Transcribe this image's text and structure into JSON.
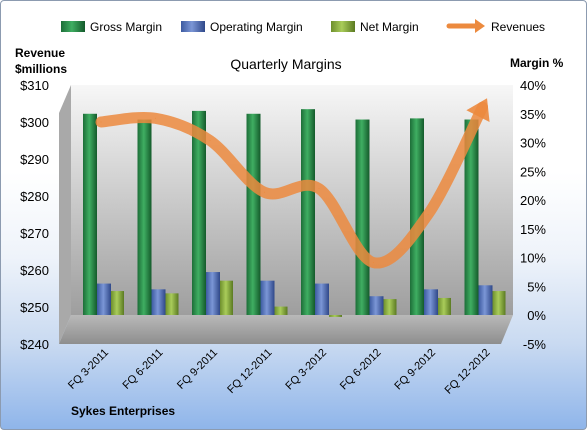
{
  "chart_data": {
    "type": "bar+line",
    "title": "Quarterly Margins",
    "company": "Sykes Enterprises",
    "left_axis_label_line1": "Revenue",
    "left_axis_label_line2": "$millions",
    "right_axis_label": "Margin %",
    "categories": [
      "FQ 3-2011",
      "FQ 6-2011",
      "FQ 9-2011",
      "FQ 12-2011",
      "FQ 3-2012",
      "FQ 6-2012",
      "FQ 9-2012",
      "FQ 12-2012"
    ],
    "left_axis": {
      "min": 240,
      "max": 310,
      "step": 10,
      "prefix": "$"
    },
    "right_axis": {
      "min": -5,
      "max": 40,
      "step": 5,
      "suffix": "%"
    },
    "series": [
      {
        "name": "Gross Margin",
        "axis": "right",
        "color": "#1f7a3e",
        "values": [
          35,
          34,
          35.5,
          35,
          35.8,
          34,
          34.2,
          34
        ]
      },
      {
        "name": "Operating Margin",
        "axis": "right",
        "color": "#4f6fb8",
        "values": [
          5.5,
          4.5,
          7.5,
          6,
          5.5,
          3.3,
          4.5,
          5.2
        ]
      },
      {
        "name": "Net Margin",
        "axis": "right",
        "color": "#8aad3c",
        "values": [
          4.2,
          3.8,
          6,
          1.5,
          -0.3,
          2.8,
          3,
          4.2
        ]
      },
      {
        "name": "Revenues",
        "axis": "left",
        "color": "#ec8a3e",
        "values": [
          300,
          301,
          295,
          281,
          282,
          262,
          275,
          304
        ]
      }
    ],
    "legend_position": "top",
    "grid": false
  }
}
